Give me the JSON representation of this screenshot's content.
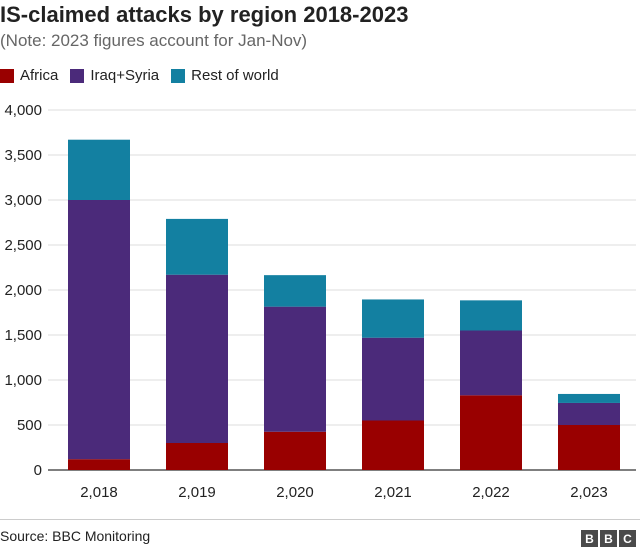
{
  "header": {
    "title": "IS-claimed attacks by region 2018-2023",
    "subtitle": "(Note: 2023 figures account for Jan-Nov)"
  },
  "footer": {
    "source": "Source: BBC Monitoring",
    "logo_letters": [
      "B",
      "B",
      "C"
    ]
  },
  "chart_data": {
    "type": "bar",
    "stacked": true,
    "categories": [
      "2,018",
      "2,019",
      "2,020",
      "2,021",
      "2,022",
      "2,023"
    ],
    "series": [
      {
        "name": "Africa",
        "color": "#990000",
        "values": [
          120,
          300,
          425,
          550,
          830,
          500
        ]
      },
      {
        "name": "Iraq+Syria",
        "color": "#4b2a7a",
        "values": [
          2880,
          1870,
          1390,
          920,
          720,
          245
        ]
      },
      {
        "name": "Rest of world",
        "color": "#1380a1",
        "values": [
          670,
          620,
          350,
          425,
          335,
          100
        ]
      }
    ],
    "ylim": [
      0,
      4000
    ],
    "yticks": [
      0,
      500,
      1000,
      1500,
      2000,
      2500,
      3000,
      3500,
      4000
    ],
    "ytick_labels": [
      "0",
      "500",
      "1,000",
      "1,500",
      "2,000",
      "2,500",
      "3,000",
      "3,500",
      "4,000"
    ],
    "grid": true,
    "legend_position": "top-left"
  }
}
